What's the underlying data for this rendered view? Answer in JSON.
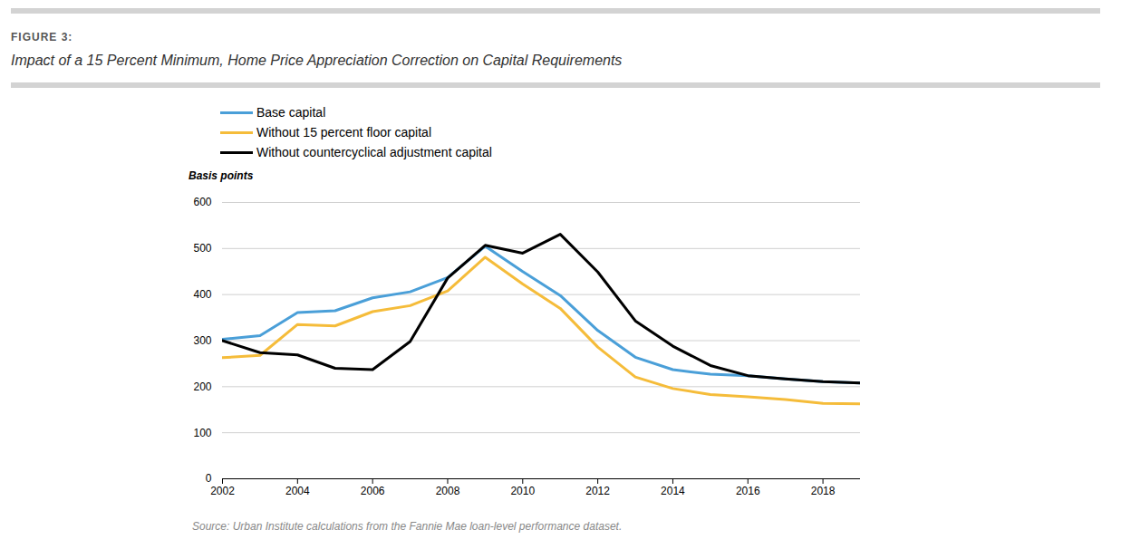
{
  "chart_data": {
    "type": "line",
    "figure_label": "FIGURE 3:",
    "title": "Impact of a 15 Percent Minimum, Home Price Appreciation Correction on Capital Requirements",
    "y_label": "Basis points",
    "source": "Source: Urban Institute calculations from the Fannie Mae loan-level performance dataset.",
    "x": [
      2002,
      2003,
      2004,
      2005,
      2006,
      2007,
      2008,
      2009,
      2010,
      2011,
      2012,
      2013,
      2014,
      2015,
      2016,
      2017,
      2018,
      2019
    ],
    "series": [
      {
        "name": "Base capital",
        "color": "#4a9fd8",
        "values": [
          303,
          311,
          361,
          365,
          393,
          406,
          437,
          505,
          450,
          398,
          322,
          264,
          237,
          227,
          224,
          217,
          211,
          208
        ]
      },
      {
        "name": "Without 15 percent floor capital",
        "color": "#f5bc3a",
        "values": [
          263,
          268,
          335,
          332,
          363,
          376,
          408,
          481,
          423,
          370,
          286,
          221,
          196,
          183,
          178,
          172,
          164,
          163
        ]
      },
      {
        "name": "Without countercyclical adjustment capital",
        "color": "#000000",
        "values": [
          300,
          274,
          269,
          240,
          237,
          298,
          436,
          507,
          490,
          531,
          449,
          343,
          288,
          246,
          224,
          217,
          211,
          208
        ]
      }
    ],
    "xlim": [
      2002,
      2019
    ],
    "xticks": [
      2002,
      2004,
      2006,
      2008,
      2010,
      2012,
      2014,
      2016,
      2018
    ],
    "ylim": [
      0,
      600
    ],
    "yticks": [
      0,
      100,
      200,
      300,
      400,
      500,
      600
    ],
    "grid": true,
    "legend": "top-left"
  }
}
